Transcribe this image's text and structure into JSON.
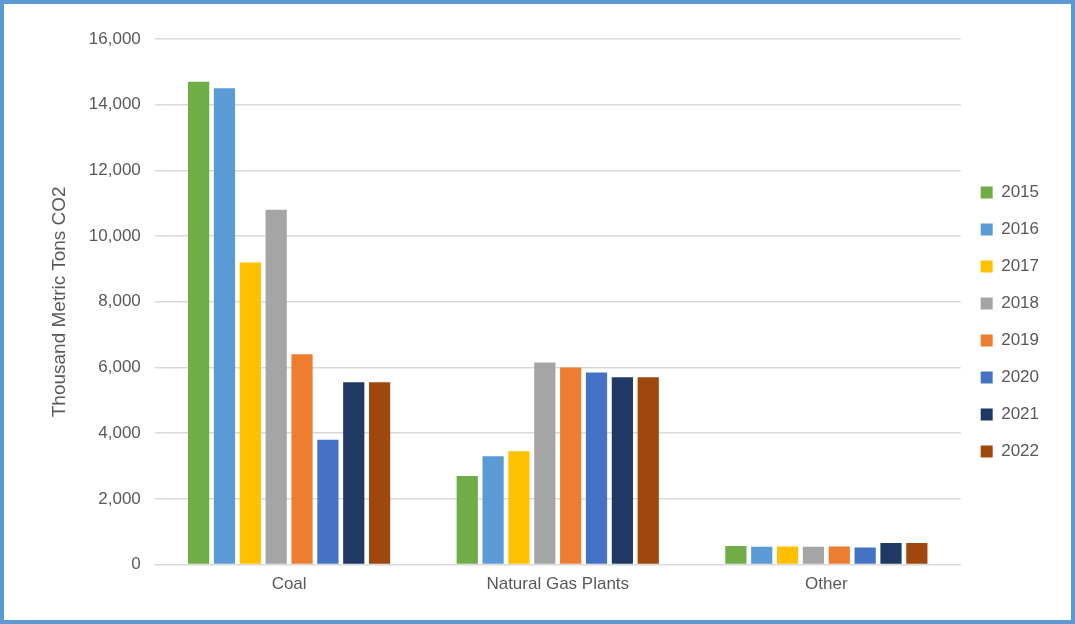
{
  "chart_data": {
    "type": "bar",
    "ylabel": "Thousand Metric Tons CO2",
    "categories": [
      "Coal",
      "Natural Gas Plants",
      "Other"
    ],
    "series": [
      {
        "name": "2015",
        "color": "#70ad47",
        "values": [
          14700,
          2700,
          570
        ]
      },
      {
        "name": "2016",
        "color": "#5b9bd5",
        "values": [
          14500,
          3300,
          540
        ]
      },
      {
        "name": "2017",
        "color": "#ffc000",
        "values": [
          9200,
          3450,
          550
        ]
      },
      {
        "name": "2018",
        "color": "#a5a5a5",
        "values": [
          10800,
          6150,
          540
        ]
      },
      {
        "name": "2019",
        "color": "#ed7d31",
        "values": [
          6400,
          6000,
          550
        ]
      },
      {
        "name": "2020",
        "color": "#4472c4",
        "values": [
          3800,
          5850,
          520
        ]
      },
      {
        "name": "2021",
        "color": "#203864",
        "values": [
          5550,
          5700,
          660
        ]
      },
      {
        "name": "2022",
        "color": "#9e480e",
        "values": [
          5550,
          5700,
          660
        ]
      }
    ],
    "ylim": [
      0,
      16000
    ],
    "yticks": [
      0,
      {
        "value": 2000,
        "label": "2,000"
      },
      {
        "value": 4000,
        "label": "4,000"
      },
      {
        "value": 6000,
        "label": "6,000"
      },
      {
        "value": 8000,
        "label": "8,000"
      },
      {
        "value": 10000,
        "label": "10,000"
      },
      {
        "value": 12000,
        "label": "12,000"
      },
      {
        "value": 14000,
        "label": "14,000"
      },
      {
        "value": 16000,
        "label": "16,000"
      }
    ],
    "grid": "y",
    "legend": "right"
  }
}
